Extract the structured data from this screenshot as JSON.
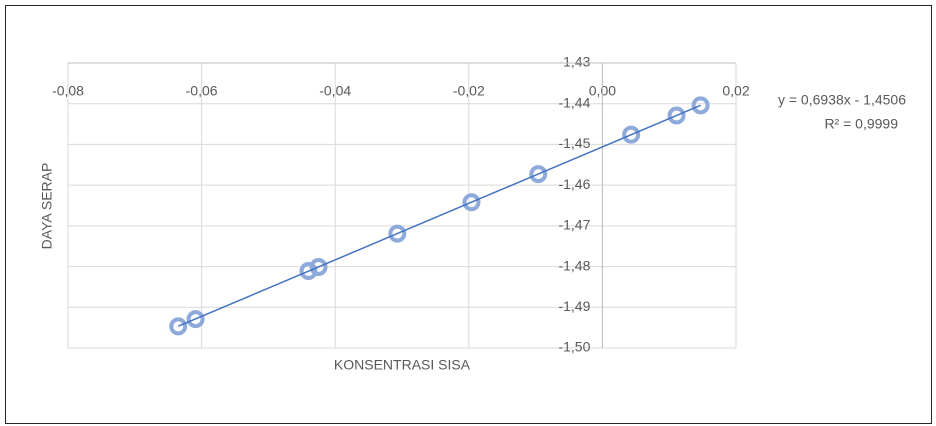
{
  "chart_data": {
    "type": "scatter",
    "x_label": "KONSENTRASI SISA",
    "y_label": "DAYA SERAP",
    "series": [
      {
        "color": "#8eaadb",
        "x": [
          -0.0635,
          -0.0609,
          -0.044,
          -0.0425,
          -0.0307,
          -0.0196,
          -0.0096,
          0.0043,
          0.0111,
          0.0147
        ],
        "values": [
          -1.4947,
          -1.4929,
          -1.4811,
          -1.4801,
          -1.4719,
          -1.4642,
          -1.4573,
          -1.4476,
          -1.4429,
          -1.4404
        ]
      }
    ],
    "trendline": {
      "color": "#4472c4",
      "slope": 0.6938,
      "intercept": -1.4506,
      "equation_label": "y = 0,6938x - 1,4506",
      "r2_label": "R² = 0,9999"
    },
    "xlim": [
      -0.08,
      0.02
    ],
    "xticks": [
      {
        "value": -0.08,
        "label": "-0,08"
      },
      {
        "value": -0.06,
        "label": "-0,06"
      },
      {
        "value": -0.04,
        "label": "-0,04"
      },
      {
        "value": -0.02,
        "label": "-0,02"
      },
      {
        "value": 0,
        "label": "0,00"
      },
      {
        "value": 0.02,
        "label": "0,02"
      }
    ],
    "ylim": [
      -1.5,
      -1.43
    ],
    "yticks": [
      {
        "value": -1.43,
        "label": "-1,43"
      },
      {
        "value": -1.44,
        "label": "-1,44"
      },
      {
        "value": -1.45,
        "label": "-1,45"
      },
      {
        "value": -1.46,
        "label": "-1,46"
      },
      {
        "value": -1.47,
        "label": "-1,47"
      },
      {
        "value": -1.48,
        "label": "-1,48"
      },
      {
        "value": -1.49,
        "label": "-1,49"
      },
      {
        "value": -1.5,
        "label": "-1,50"
      }
    ],
    "grid": true
  }
}
